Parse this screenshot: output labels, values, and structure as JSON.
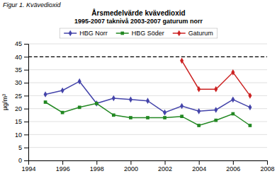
{
  "chart_data": {
    "type": "line",
    "title": "Årsmedelvärde kvävedioxid",
    "subtitle": "1995-2007 taknivå 2003-2007 gaturum norr",
    "annotation": "Figur 1. Kvävedioxid",
    "y_label": "µg/m³",
    "x": [
      1995,
      1996,
      1997,
      1998,
      1999,
      2000,
      2001,
      2002,
      2003,
      2004,
      2005,
      2006,
      2007
    ],
    "series": [
      {
        "name": "HBG Norr",
        "color": "#4444aa",
        "marker": "diamond",
        "values": [
          25.5,
          27.0,
          30.5,
          22.0,
          24.0,
          23.5,
          23.0,
          18.5,
          21.0,
          19.0,
          19.5,
          23.5,
          20.5
        ]
      },
      {
        "name": "HBG Söder",
        "color": "#228822",
        "marker": "square",
        "values": [
          22.5,
          18.5,
          20.5,
          22.0,
          17.5,
          16.5,
          16.5,
          16.5,
          17.0,
          13.5,
          15.5,
          18.0,
          13.5
        ]
      },
      {
        "name": "Gaturum",
        "color": "#cc2222",
        "marker": "diamond",
        "values": [
          null,
          null,
          null,
          null,
          null,
          null,
          null,
          null,
          38.5,
          27.5,
          27.5,
          34.0,
          25.0
        ]
      }
    ],
    "threshold": 40,
    "xlim": [
      1994,
      2008
    ],
    "ylim": [
      0,
      45
    ],
    "xticks": [
      1994,
      1996,
      1998,
      2000,
      2002,
      2004,
      2006,
      2008
    ],
    "yticks": [
      0,
      5,
      10,
      15,
      20,
      25,
      30,
      35,
      40,
      45
    ],
    "grid": "y",
    "legend": "top"
  }
}
